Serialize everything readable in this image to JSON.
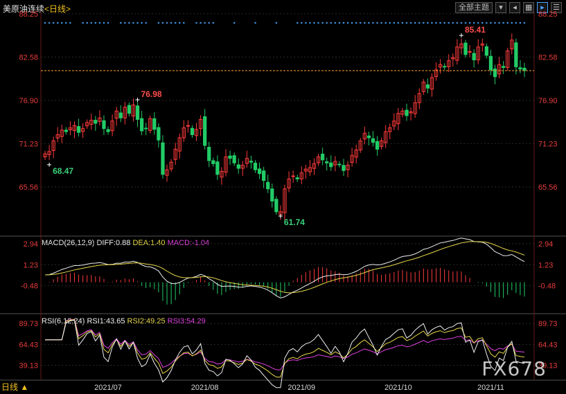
{
  "header": {
    "symbol": "美原油连续",
    "period_link": "<日线>"
  },
  "toolbar": {
    "theme_label": "全部主题",
    "dropdown_icon": "chevron-down-icon",
    "buttons": [
      "prev-icon",
      "grid-icon",
      "play-icon",
      "list-icon"
    ]
  },
  "colors": {
    "bg": "#000000",
    "up": "#ff3b3b",
    "down": "#22cc66",
    "grid": "#2a2a2a",
    "axis_text": "#e83c3c",
    "ma": "#e8d84a",
    "magenta": "#e040e0",
    "white": "#f0f0f0",
    "dots": "#3e8edc",
    "last": "#ffa030"
  },
  "bottom": {
    "period_label": "日线 ▲",
    "watermark": "FX678"
  },
  "chart_data": [
    {
      "type": "candlestick",
      "title": "美原油连续",
      "y_ticks": [
        "88.25",
        "82.58",
        "76.90",
        "71.23",
        "65.56"
      ],
      "ylim": [
        59.2,
        88.6
      ],
      "x_tick_labels": [
        {
          "index": 15,
          "label": "2021/07"
        },
        {
          "index": 38,
          "label": "2021/08"
        },
        {
          "index": 61,
          "label": "2021/09"
        },
        {
          "index": 84,
          "label": "2021/10"
        },
        {
          "index": 106,
          "label": "2021/11"
        }
      ],
      "annotations": [
        {
          "index": 1,
          "value": 68.47,
          "label": "68.47",
          "pos": "below"
        },
        {
          "index": 22,
          "value": 76.98,
          "label": "76.98",
          "pos": "above"
        },
        {
          "index": 56,
          "value": 61.74,
          "label": "61.74",
          "pos": "below"
        },
        {
          "index": 99,
          "value": 85.41,
          "label": "85.41",
          "pos": "above"
        }
      ],
      "last_price": 80.8,
      "series_close": [
        69.9,
        70.2,
        71.6,
        72.4,
        73.0,
        72.8,
        73.3,
        73.6,
        72.7,
        73.2,
        74.0,
        74.3,
        73.9,
        74.6,
        73.2,
        72.8,
        74.2,
        75.5,
        74.6,
        76.0,
        75.2,
        76.3,
        74.4,
        72.9,
        73.2,
        74.5,
        73.1,
        71.7,
        67.2,
        67.8,
        68.8,
        70.5,
        72.0,
        73.3,
        73.6,
        72.4,
        73.1,
        74.4,
        71.0,
        69.0,
        68.6,
        67.2,
        67.6,
        69.5,
        69.3,
        68.7,
        68.0,
        68.4,
        69.3,
        68.8,
        67.8,
        67.3,
        66.4,
        65.3,
        63.7,
        62.3,
        62.3,
        65.3,
        66.6,
        67.0,
        66.6,
        67.4,
        67.9,
        68.1,
        68.6,
        69.5,
        69.1,
        68.7,
        68.2,
        68.9,
        68.5,
        67.7,
        68.4,
        69.7,
        70.4,
        71.6,
        72.6,
        72.0,
        71.4,
        70.5,
        71.6,
        72.8,
        73.3,
        74.2,
        75.2,
        75.5,
        74.9,
        75.4,
        76.6,
        77.8,
        79.3,
        78.5,
        79.9,
        80.9,
        81.6,
        81.3,
        82.1,
        82.5,
        83.9,
        84.3,
        82.9,
        83.3,
        82.2,
        83.9,
        84.3,
        82.8,
        80.9,
        80.0,
        81.6,
        81.2,
        83.4,
        84.8,
        81.3,
        81.0,
        80.8
      ],
      "volume_dots": "fixed row of blue markers along the top of the price panel"
    },
    {
      "type": "line",
      "title": "MACD(26,12,9)",
      "legend": [
        {
          "name": "MACD(26,12,9)",
          "color": "#f0f0f0"
        },
        {
          "name": "DIFF:0.88",
          "color": "#f0f0f0"
        },
        {
          "name": "DEA:1.40",
          "color": "#e8d84a"
        },
        {
          "name": "MACD:-1.04",
          "color": "#e040e0"
        }
      ],
      "y_ticks": [
        "2.94",
        "1.23",
        "-0.48"
      ],
      "ylim": [
        -2.7,
        3.5
      ],
      "current": {
        "DIFF": 0.88,
        "DEA": 1.4,
        "MACD": -1.04
      }
    },
    {
      "type": "line",
      "title": "RSI(6,12,24)",
      "legend": [
        {
          "name": "RSI(6,12,24)",
          "color": "#f0f0f0"
        },
        {
          "name": "RSI1:43.65",
          "color": "#f0f0f0"
        },
        {
          "name": "RSI2:49.25",
          "color": "#e8d84a"
        },
        {
          "name": "RSI3:54.29",
          "color": "#e040e0"
        }
      ],
      "y_ticks": [
        "89.73",
        "64.43",
        "39.13"
      ],
      "ylim": [
        22,
        100
      ],
      "current": {
        "RSI1": 43.65,
        "RSI2": 49.25,
        "RSI3": 54.29
      }
    }
  ]
}
